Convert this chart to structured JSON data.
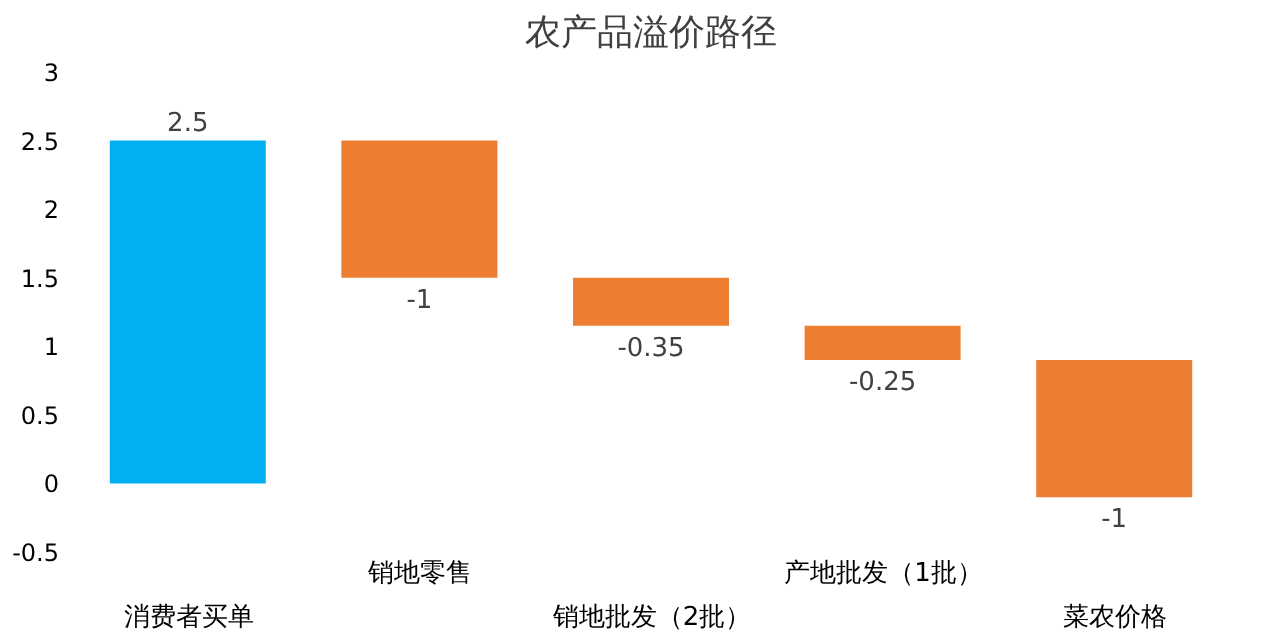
{
  "chart_data": {
    "type": "bar",
    "title": "农产品溢价路径",
    "categories": [
      "消费者买单",
      "销地零售",
      "销地批发（2批）",
      "产地批发（1批）",
      "菜农价格"
    ],
    "values": [
      2.5,
      -1,
      -0.35,
      -0.25,
      -1
    ],
    "base": [
      0,
      2.5,
      1.5,
      1.15,
      0.9
    ],
    "colors": [
      "#00b0f0",
      "#ed7d31",
      "#ed7d31",
      "#ed7d31",
      "#ed7d31"
    ],
    "ylim": [
      -0.5,
      3
    ],
    "yticks": [
      -0.5,
      0,
      0.5,
      1,
      1.5,
      2,
      2.5,
      3
    ],
    "data_labels": true,
    "grid": false
  }
}
